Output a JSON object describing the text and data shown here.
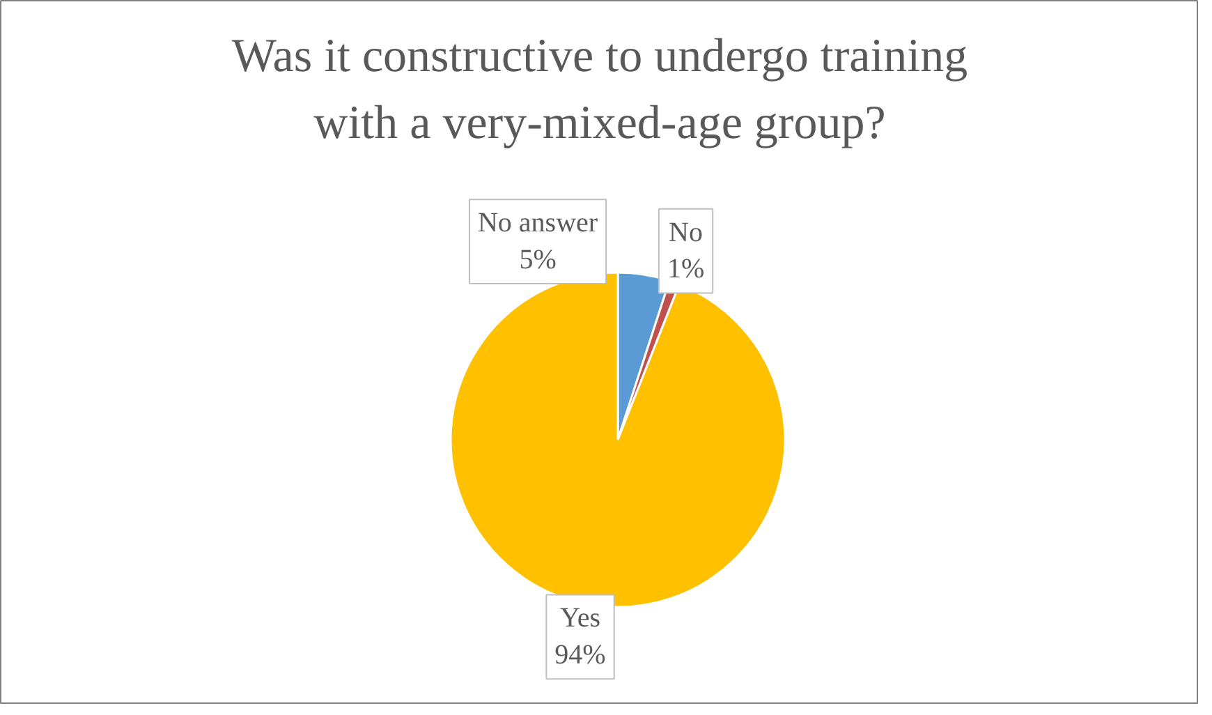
{
  "chart_data": {
    "type": "pie",
    "title": "Was it constructive to undergo training with a very-mixed-age group?",
    "categories": [
      "No answer",
      "No",
      "Yes"
    ],
    "values": [
      5,
      1,
      94
    ],
    "colors": [
      "#5b9bd5",
      "#c0504d",
      "#ffc000"
    ],
    "value_labels": [
      "5%",
      "1%",
      "94%"
    ]
  }
}
